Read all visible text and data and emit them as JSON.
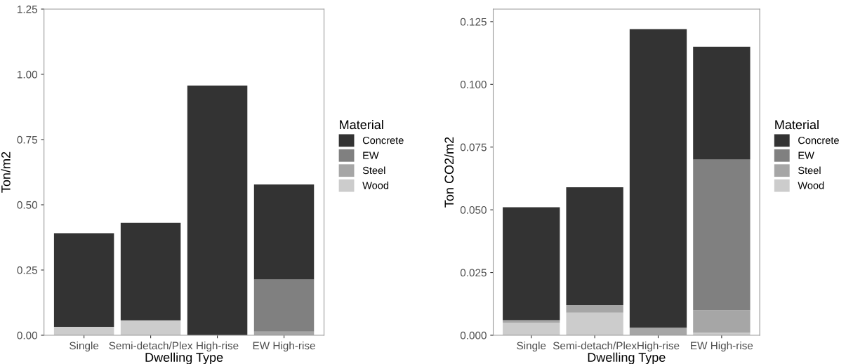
{
  "chart_data": [
    {
      "type": "bar",
      "stacked": true,
      "xlabel": "Dwelling Type",
      "ylabel": "Ton/m2",
      "legend_title": "Material",
      "legend": "right",
      "grid": false,
      "categories": [
        "Single",
        "Semi-detach/Plex",
        "High-rise",
        "EW High-rise"
      ],
      "ylim": [
        0,
        1.25
      ],
      "yticks": [
        {
          "value": 0,
          "label": "0.00"
        },
        {
          "value": 0.25,
          "label": "0.25"
        },
        {
          "value": 0.5,
          "label": "0.50"
        },
        {
          "value": 0.75,
          "label": "0.75"
        },
        {
          "value": 1,
          "label": "1.00"
        },
        {
          "value": 1.25,
          "label": "1.25"
        }
      ],
      "series": [
        {
          "name": "Wood",
          "color": "#cccccc",
          "values": [
            0.032,
            0.057,
            0,
            0
          ]
        },
        {
          "name": "Steel",
          "color": "#a6a6a6",
          "values": [
            0,
            0,
            0,
            0.014
          ]
        },
        {
          "name": "EW",
          "color": "#808080",
          "values": [
            0,
            0,
            0,
            0.2
          ]
        },
        {
          "name": "Concrete",
          "color": "#333333",
          "values": [
            0.359,
            0.374,
            0.957,
            0.364
          ]
        }
      ]
    },
    {
      "type": "bar",
      "stacked": true,
      "xlabel": "Dwelling Type",
      "ylabel": "Ton CO2/m2",
      "legend_title": "Material",
      "legend": "right",
      "grid": false,
      "categories": [
        "Single",
        "Semi-detach/Plex",
        "High-rise",
        "EW High-rise"
      ],
      "ylim": [
        0,
        0.13
      ],
      "yticks": [
        {
          "value": 0,
          "label": "0.000"
        },
        {
          "value": 0.025,
          "label": "0.025"
        },
        {
          "value": 0.05,
          "label": "0.050"
        },
        {
          "value": 0.075,
          "label": "0.075"
        },
        {
          "value": 0.1,
          "label": "0.100"
        },
        {
          "value": 0.125,
          "label": "0.125"
        }
      ],
      "series": [
        {
          "name": "Wood",
          "color": "#cccccc",
          "values": [
            0.005,
            0.009,
            0,
            0.001
          ]
        },
        {
          "name": "Steel",
          "color": "#a6a6a6",
          "values": [
            0.001,
            0.003,
            0.003,
            0.009
          ]
        },
        {
          "name": "EW",
          "color": "#808080",
          "values": [
            0,
            0,
            0,
            0.06
          ]
        },
        {
          "name": "Concrete",
          "color": "#333333",
          "values": [
            0.045,
            0.047,
            0.119,
            0.045
          ]
        }
      ]
    }
  ]
}
